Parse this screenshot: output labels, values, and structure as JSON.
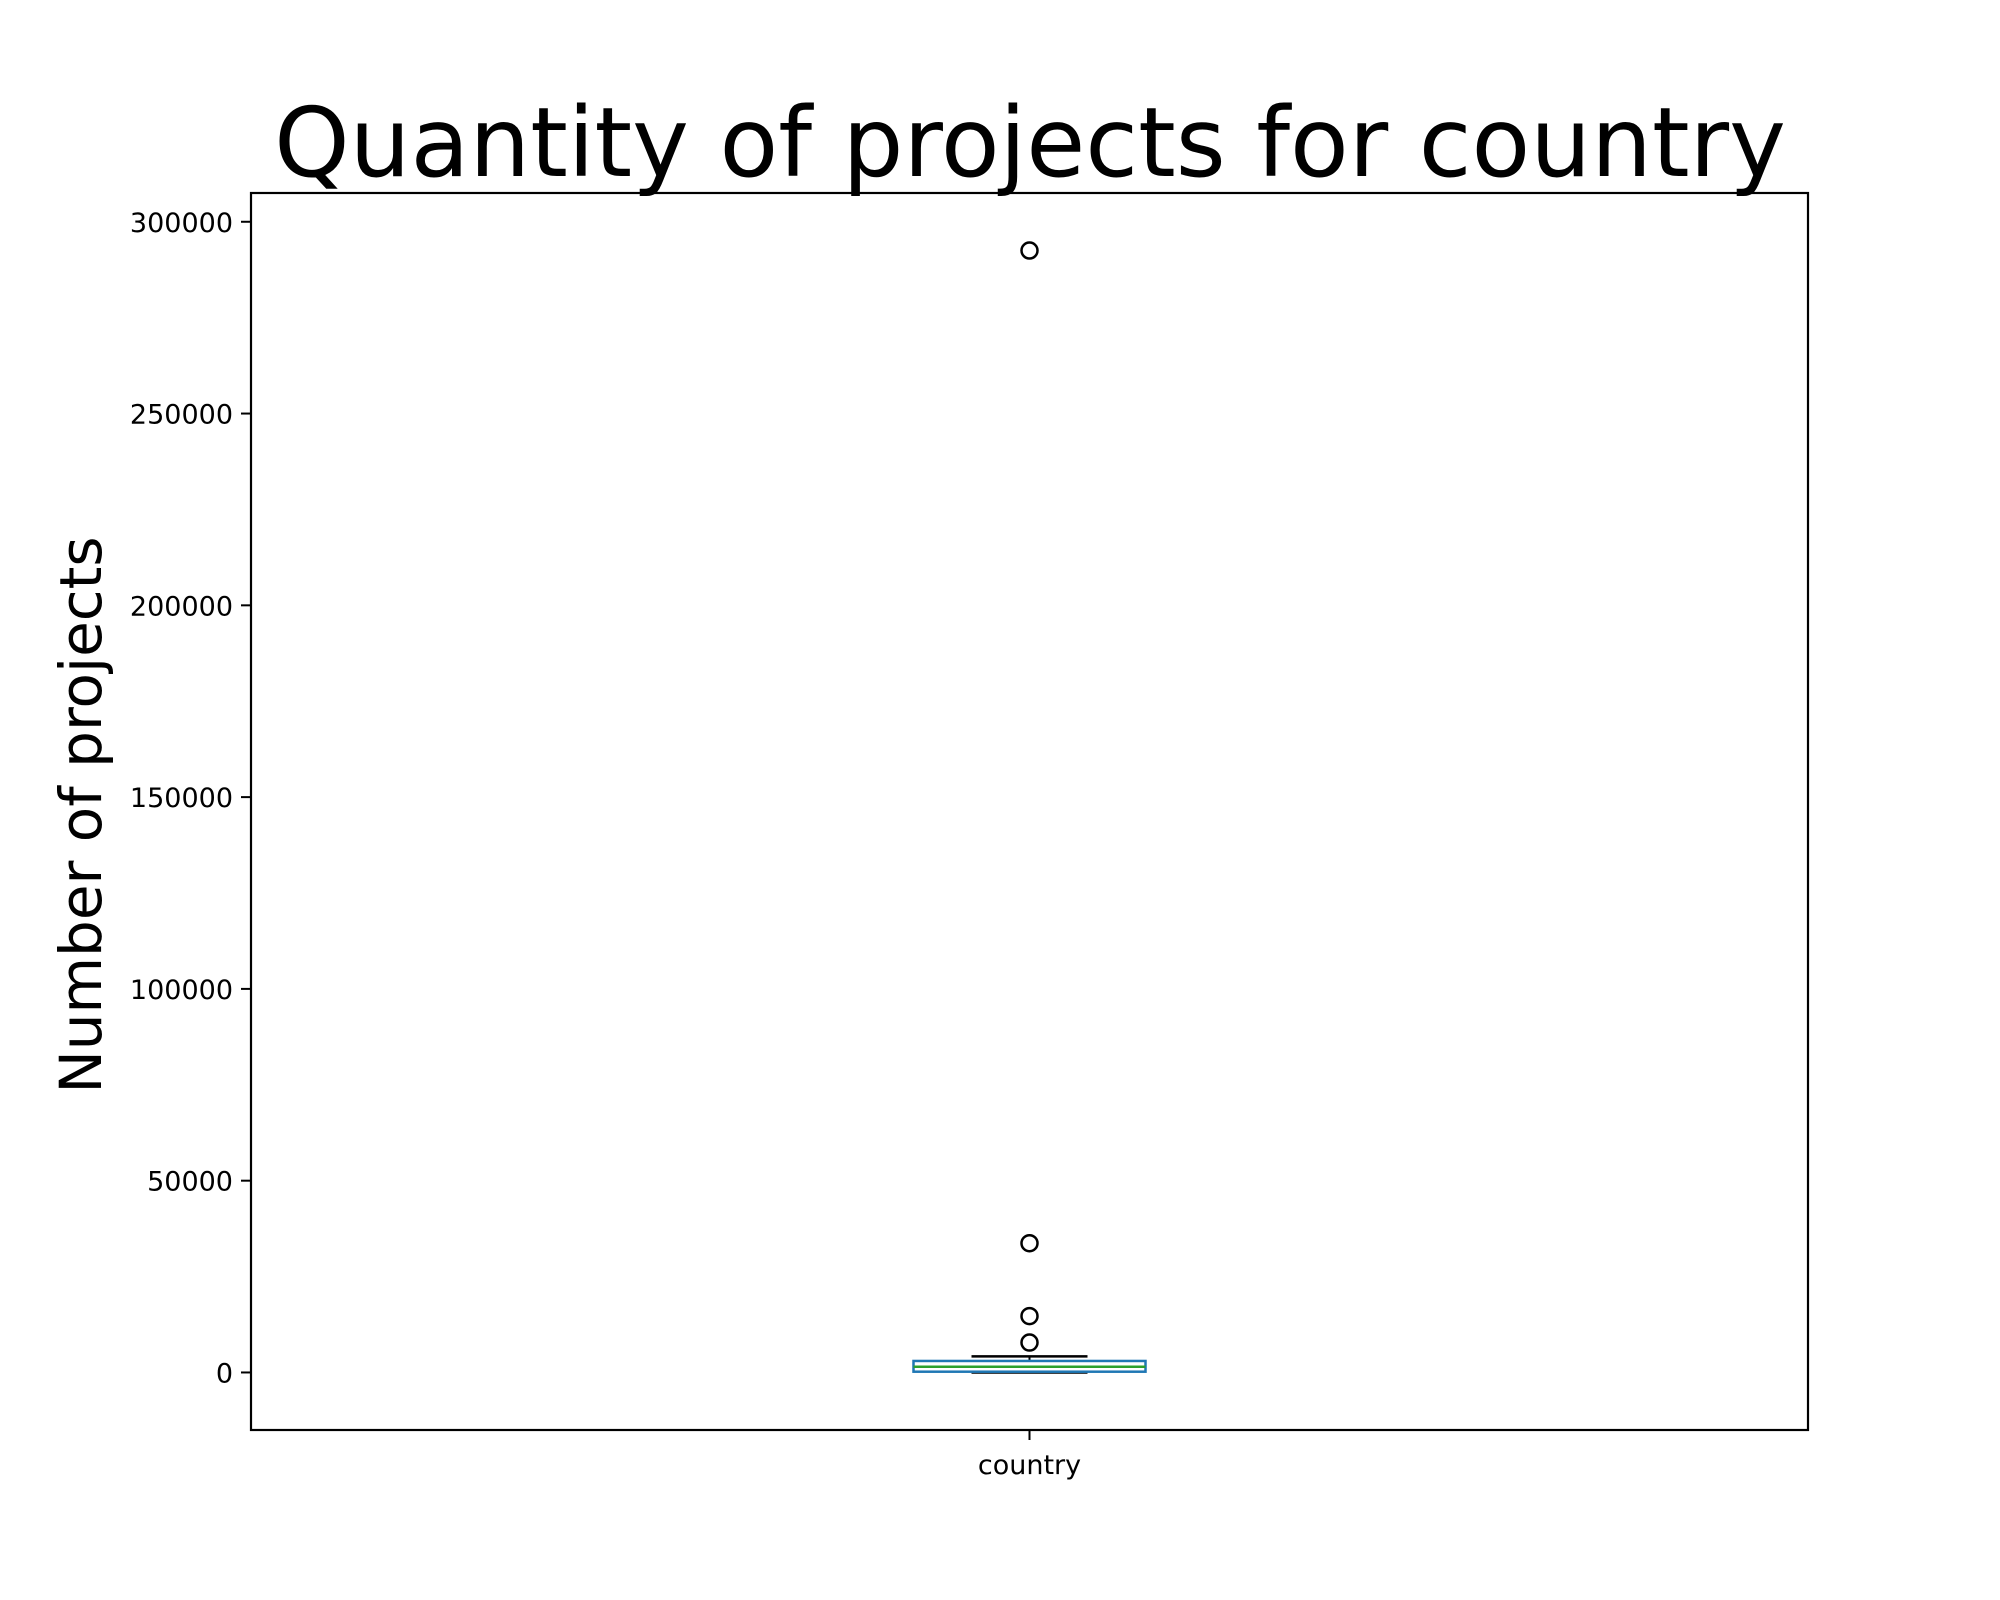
{
  "chart_data": {
    "type": "box",
    "title": "Quantity of projects for country",
    "xlabel": "",
    "ylabel": "Number of projects",
    "categories": [
      "country"
    ],
    "ylim": [
      -15000,
      307500
    ],
    "yticks": [
      0,
      50000,
      100000,
      150000,
      200000,
      250000,
      300000
    ],
    "ytick_labels": [
      "0",
      "50000",
      "100000",
      "150000",
      "200000",
      "250000",
      "300000"
    ],
    "grid": false,
    "boxes": [
      {
        "category": "country",
        "whisker_low": 0,
        "q1": 200,
        "median": 1500,
        "q3": 3000,
        "whisker_high": 4200,
        "outliers": [
          292500,
          33700,
          14700,
          7800
        ]
      }
    ],
    "colors": {
      "box": "#1f77b4",
      "median": "#2ca02c",
      "whisker": "#000000",
      "cap": "#000000",
      "flier": "#000000"
    }
  }
}
